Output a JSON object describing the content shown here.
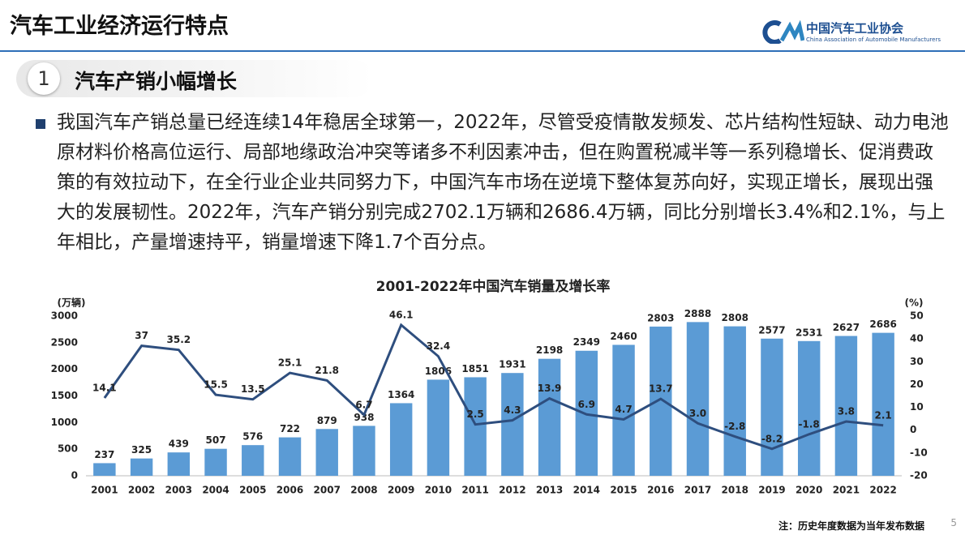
{
  "header": {
    "title": "汽车工业经济运行特点",
    "logo_cn": "中国汽车工业协会",
    "logo_en": "China Association of Automobile Manufacturers"
  },
  "section": {
    "number": "1",
    "title": "汽车产销小幅增长"
  },
  "body": {
    "text": "我国汽车产销总量已经连续14年稳居全球第一，2022年，尽管受疫情散发频发、芯片结构性短缺、动力电池原材料价格高位运行、局部地缘政治冲突等诸多不利因素冲击，但在购置税减半等一系列稳增长、促消费政策的有效拉动下，在全行业企业共同努力下，中国汽车市场在逆境下整体复苏向好，实现正增长，展现出强大的发展韧性。2022年，汽车产销分别完成2702.1万辆和2686.4万辆，同比分别增长3.4%和2.1%，与上年相比，产量增速持平，销量增速下降1.7个百分点。"
  },
  "footnote": "注：历史年度数据为当年发布数据",
  "page_number": "5",
  "chart_data": {
    "type": "bar-line",
    "title": "2001-2022年中国汽车销量及增长率",
    "y_label": "(万辆)",
    "y2_label": "(%)",
    "categories": [
      "2001",
      "2002",
      "2003",
      "2004",
      "2005",
      "2006",
      "2007",
      "2008",
      "2009",
      "2010",
      "2011",
      "2012",
      "2013",
      "2014",
      "2015",
      "2016",
      "2017",
      "2018",
      "2019",
      "2020",
      "2021",
      "2022"
    ],
    "series": [
      {
        "type": "bar",
        "color": "#5b9bd5",
        "values": [
          237,
          325,
          439,
          507,
          576,
          722,
          879,
          938,
          1364,
          1806,
          1851,
          1931,
          2198,
          2349,
          2460,
          2803,
          2888,
          2808,
          2577,
          2531,
          2627,
          2686
        ]
      },
      {
        "type": "line",
        "axis": "y2",
        "color": "#2e4e7e",
        "values": [
          14.1,
          37,
          35.2,
          15.5,
          13.5,
          25.1,
          21.8,
          6.7,
          46.1,
          32.4,
          2.5,
          4.3,
          13.9,
          6.9,
          4.7,
          13.7,
          3.0,
          -2.8,
          -8.2,
          -1.8,
          3.8,
          2.1
        ],
        "value_labels": [
          "14.1",
          "37",
          "35.2",
          "15.5",
          "13.5",
          "25.1",
          "21.8",
          "6.7",
          "46.1",
          "32.4",
          "2.5",
          "4.3",
          "13.9",
          "6.9",
          "4.7",
          "13.7",
          "3.0",
          "-2.8",
          "-8.2",
          "-1.8",
          "3.8",
          "2.1"
        ]
      }
    ],
    "ylim": [
      0,
      3000
    ],
    "yticks": [
      0,
      500,
      1000,
      1500,
      2000,
      2500,
      3000
    ],
    "y2lim": [
      -20,
      50
    ],
    "y2ticks": [
      -20,
      -10,
      0,
      10,
      20,
      30,
      40,
      50
    ]
  }
}
